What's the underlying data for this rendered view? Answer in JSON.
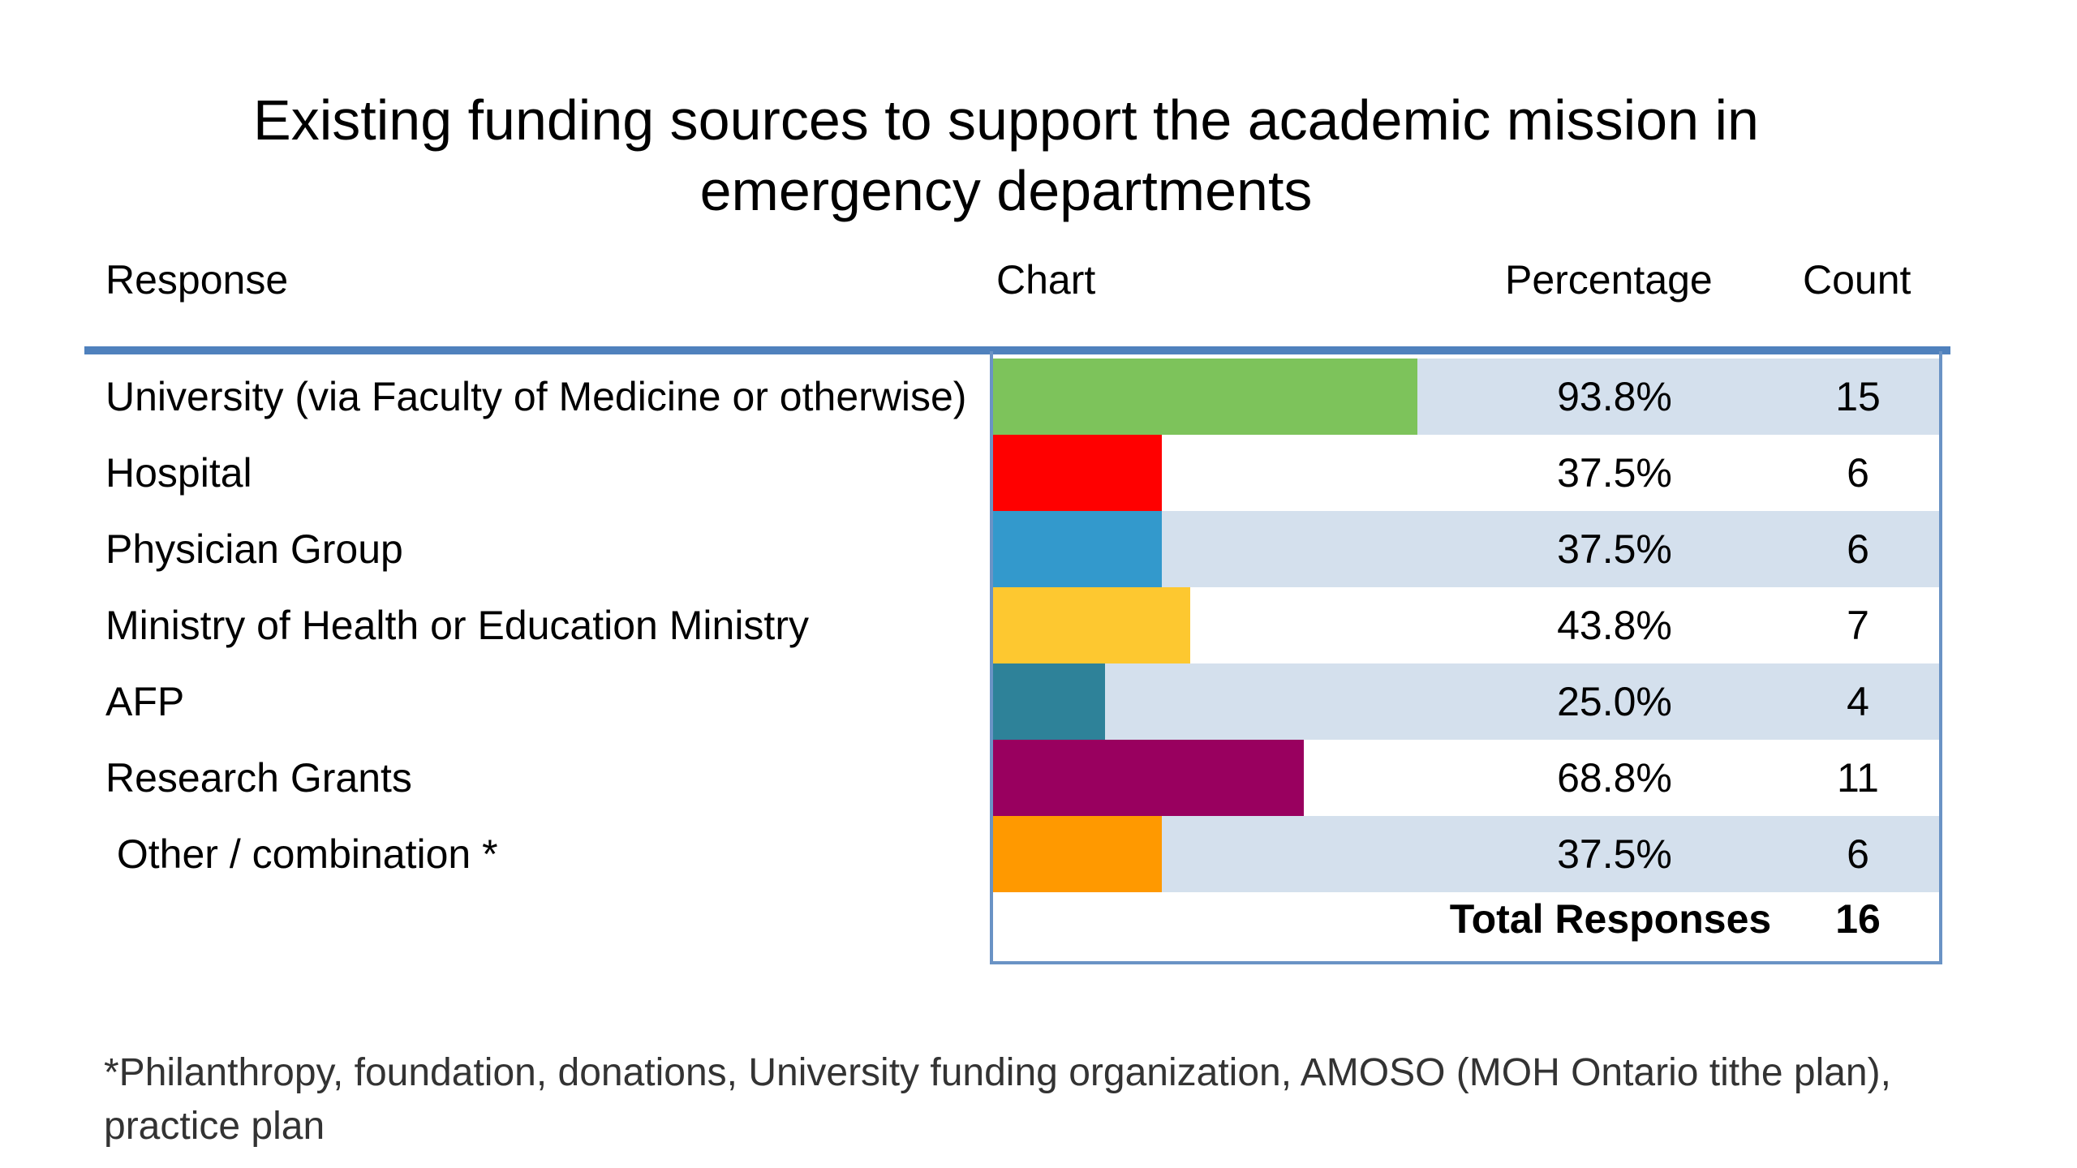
{
  "title_line1": "Existing funding sources to support the academic mission in",
  "title_line2": "emergency departments",
  "headers": {
    "response": "Response",
    "chart": "Chart",
    "percentage": "Percentage",
    "count": "Count"
  },
  "colors": {
    "rule": "#4f81bd",
    "band": "#d4e0ed",
    "frame": "#6a93c5"
  },
  "rows": [
    {
      "label": "University (via Faculty of Medicine or otherwise)",
      "percentage": "93.8%",
      "count": "15",
      "color": "#7dc35b"
    },
    {
      "label": "Hospital",
      "percentage": "37.5%",
      "count": "6",
      "color": "#ff0000"
    },
    {
      "label": "Physician Group",
      "percentage": "37.5%",
      "count": "6",
      "color": "#3399cc"
    },
    {
      "label": "Ministry of Health or Education Ministry",
      "percentage": "43.8%",
      "count": "7",
      "color": "#fdc830"
    },
    {
      "label": "AFP",
      "percentage": "25.0%",
      "count": "4",
      "color": "#2e8299"
    },
    {
      "label": "Research Grants",
      "percentage": "68.8%",
      "count": "11",
      "color": "#99005f"
    },
    {
      "label": " Other / combination *",
      "percentage": "37.5%",
      "count": "6",
      "color": "#ff9900"
    }
  ],
  "total": {
    "label": "Total Responses",
    "count": "16"
  },
  "footnote": "*Philanthropy, foundation, donations, University funding organization, AMOSO (MOH Ontario tithe plan), practice plan",
  "chart_data": {
    "type": "bar",
    "orientation": "horizontal",
    "categories": [
      "University (via Faculty of Medicine or otherwise)",
      "Hospital",
      "Physician Group",
      "Ministry of Health or Education Ministry",
      "AFP",
      "Research Grants",
      "Other / combination *"
    ],
    "values": [
      93.8,
      37.5,
      37.5,
      43.8,
      25.0,
      68.8,
      37.5
    ],
    "counts": [
      15,
      6,
      6,
      7,
      4,
      11,
      6
    ],
    "total_responses": 16,
    "grid": false,
    "legend": "none"
  }
}
